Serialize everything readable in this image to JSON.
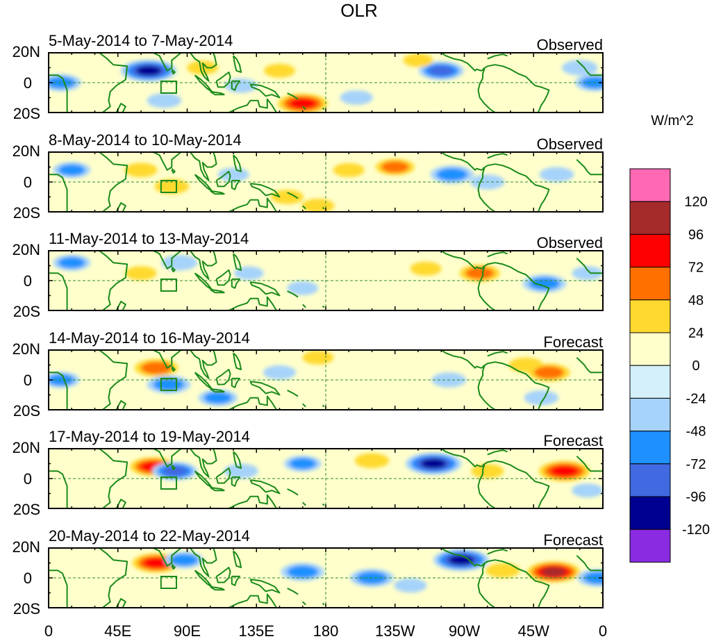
{
  "chart_data": {
    "type": "heatmap",
    "title": "OLR",
    "units": "W/m^2",
    "x_tick_labels": [
      "0",
      "45E",
      "90E",
      "135E",
      "180",
      "135W",
      "90W",
      "45W",
      "0"
    ],
    "y_tick_labels": [
      "20N",
      "0",
      "20S"
    ],
    "xlim": [
      0,
      360
    ],
    "ylim": [
      -20,
      20
    ],
    "colorbar": {
      "levels": [
        "120",
        "96",
        "72",
        "48",
        "24",
        "0",
        "-24",
        "-48",
        "-72",
        "-96",
        "-120"
      ],
      "colors": [
        "#ff69b4",
        "#a52a2a",
        "#ff0000",
        "#ff7000",
        "#ffd92f",
        "#ffffcc",
        "#d4f0fa",
        "#a6d3fa",
        "#1e90ff",
        "#4169e1",
        "#000090",
        "#8a2be2"
      ]
    },
    "panels": [
      {
        "date_range": "5-May-2014 to 7-May-2014",
        "status": "Observed",
        "anomalies": [
          {
            "lon": 8,
            "lat": 0,
            "value": -60
          },
          {
            "lon": 65,
            "lat": 8,
            "value": -110
          },
          {
            "lon": 75,
            "lat": -12,
            "value": -40
          },
          {
            "lon": 100,
            "lat": 10,
            "value": 30
          },
          {
            "lon": 125,
            "lat": -2,
            "value": -35
          },
          {
            "lon": 150,
            "lat": 8,
            "value": 30
          },
          {
            "lon": 165,
            "lat": -14,
            "value": 90
          },
          {
            "lon": 200,
            "lat": -10,
            "value": -35
          },
          {
            "lon": 255,
            "lat": 8,
            "value": -75
          },
          {
            "lon": 240,
            "lat": 15,
            "value": 25
          },
          {
            "lon": 355,
            "lat": 0,
            "value": -60
          },
          {
            "lon": 345,
            "lat": 10,
            "value": -45
          }
        ]
      },
      {
        "date_range": "8-May-2014 to 10-May-2014",
        "status": "Observed",
        "anomalies": [
          {
            "lon": 15,
            "lat": 8,
            "value": -50
          },
          {
            "lon": 60,
            "lat": 8,
            "value": 35
          },
          {
            "lon": 80,
            "lat": -3,
            "value": 40
          },
          {
            "lon": 120,
            "lat": 5,
            "value": -30
          },
          {
            "lon": 155,
            "lat": -10,
            "value": 35
          },
          {
            "lon": 175,
            "lat": -16,
            "value": 35
          },
          {
            "lon": 195,
            "lat": 8,
            "value": 30
          },
          {
            "lon": 225,
            "lat": 10,
            "value": 55
          },
          {
            "lon": 262,
            "lat": 5,
            "value": -70
          },
          {
            "lon": 285,
            "lat": 0,
            "value": -40
          },
          {
            "lon": 330,
            "lat": 5,
            "value": -40
          }
        ]
      },
      {
        "date_range": "11-May-2014 to 13-May-2014",
        "status": "Observed",
        "anomalies": [
          {
            "lon": 15,
            "lat": 12,
            "value": -50
          },
          {
            "lon": 60,
            "lat": 5,
            "value": 30
          },
          {
            "lon": 85,
            "lat": 12,
            "value": -45
          },
          {
            "lon": 130,
            "lat": 5,
            "value": -25
          },
          {
            "lon": 165,
            "lat": -5,
            "value": -30
          },
          {
            "lon": 245,
            "lat": 8,
            "value": 30
          },
          {
            "lon": 280,
            "lat": 5,
            "value": 60
          },
          {
            "lon": 322,
            "lat": -2,
            "value": -70
          },
          {
            "lon": 350,
            "lat": 5,
            "value": -30
          }
        ]
      },
      {
        "date_range": "14-May-2014 to 16-May-2014",
        "status": "Forecast",
        "anomalies": [
          {
            "lon": 8,
            "lat": 0,
            "value": -50
          },
          {
            "lon": 70,
            "lat": 8,
            "value": 70
          },
          {
            "lon": 78,
            "lat": -3,
            "value": -70
          },
          {
            "lon": 110,
            "lat": -12,
            "value": -55
          },
          {
            "lon": 150,
            "lat": 5,
            "value": -35
          },
          {
            "lon": 175,
            "lat": 15,
            "value": 30
          },
          {
            "lon": 260,
            "lat": 0,
            "value": -40
          },
          {
            "lon": 310,
            "lat": 10,
            "value": 40
          },
          {
            "lon": 325,
            "lat": 5,
            "value": 65
          },
          {
            "lon": 320,
            "lat": -12,
            "value": -40
          }
        ]
      },
      {
        "date_range": "17-May-2014 to 19-May-2014",
        "status": "Forecast",
        "anomalies": [
          {
            "lon": 68,
            "lat": 8,
            "value": 80
          },
          {
            "lon": 82,
            "lat": 5,
            "value": -75
          },
          {
            "lon": 125,
            "lat": 5,
            "value": -40
          },
          {
            "lon": 165,
            "lat": 10,
            "value": -50
          },
          {
            "lon": 210,
            "lat": 12,
            "value": 40
          },
          {
            "lon": 250,
            "lat": 10,
            "value": -110
          },
          {
            "lon": 285,
            "lat": 5,
            "value": 35
          },
          {
            "lon": 335,
            "lat": 5,
            "value": 95
          },
          {
            "lon": 350,
            "lat": -8,
            "value": -30
          }
        ]
      },
      {
        "date_range": "20-May-2014 to 22-May-2014",
        "status": "Forecast",
        "anomalies": [
          {
            "lon": 70,
            "lat": 10,
            "value": 85
          },
          {
            "lon": 88,
            "lat": 12,
            "value": -55
          },
          {
            "lon": 165,
            "lat": 4,
            "value": -70
          },
          {
            "lon": 210,
            "lat": 0,
            "value": -70
          },
          {
            "lon": 235,
            "lat": -5,
            "value": -35
          },
          {
            "lon": 268,
            "lat": 12,
            "value": -110
          },
          {
            "lon": 295,
            "lat": 5,
            "value": 40
          },
          {
            "lon": 328,
            "lat": 4,
            "value": 100
          },
          {
            "lon": 357,
            "lat": 0,
            "value": -65
          }
        ]
      }
    ]
  }
}
